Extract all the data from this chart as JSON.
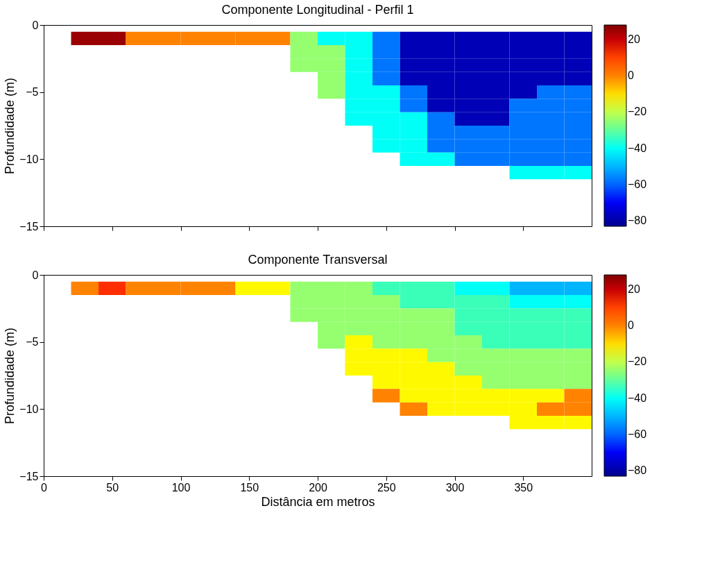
{
  "chart_data": [
    {
      "type": "heatmap",
      "title": "Componente Longitudinal  - Perfil 1",
      "ylabel": "Profundidade (m)",
      "x": [
        30,
        50,
        70,
        90,
        110,
        130,
        150,
        170,
        190,
        210,
        230,
        250,
        270,
        290,
        310,
        330,
        350,
        370,
        390
      ],
      "y": [
        -1,
        -2,
        -3,
        -4,
        -5,
        -6,
        -7,
        -8,
        -9,
        -10,
        -11
      ],
      "cells": [
        [
          25,
          25,
          0,
          0,
          0,
          0,
          0,
          0,
          -25,
          -40,
          -40,
          -57,
          -78,
          -78,
          -78,
          -78,
          -78,
          -78,
          -78
        ],
        [
          null,
          null,
          null,
          null,
          null,
          null,
          null,
          null,
          -25,
          -25,
          -40,
          -57,
          -78,
          -78,
          -78,
          -78,
          -78,
          -78,
          -78
        ],
        [
          null,
          null,
          null,
          null,
          null,
          null,
          null,
          null,
          -25,
          -25,
          -40,
          -57,
          -78,
          -78,
          -78,
          -78,
          -78,
          -78,
          -78
        ],
        [
          null,
          null,
          null,
          null,
          null,
          null,
          null,
          null,
          null,
          -25,
          -40,
          -57,
          -78,
          -78,
          -78,
          -78,
          -78,
          -78,
          -78
        ],
        [
          null,
          null,
          null,
          null,
          null,
          null,
          null,
          null,
          null,
          -25,
          -40,
          -40,
          -57,
          -78,
          -78,
          -78,
          -78,
          -57,
          -57
        ],
        [
          null,
          null,
          null,
          null,
          null,
          null,
          null,
          null,
          null,
          null,
          -40,
          -40,
          -57,
          -78,
          -78,
          -78,
          -57,
          -57,
          -57
        ],
        [
          null,
          null,
          null,
          null,
          null,
          null,
          null,
          null,
          null,
          null,
          -40,
          -40,
          -40,
          -57,
          -78,
          -78,
          -57,
          -57,
          -57
        ],
        [
          null,
          null,
          null,
          null,
          null,
          null,
          null,
          null,
          null,
          null,
          null,
          -40,
          -40,
          -57,
          -57,
          -57,
          -57,
          -57,
          -57
        ],
        [
          null,
          null,
          null,
          null,
          null,
          null,
          null,
          null,
          null,
          null,
          null,
          -40,
          -40,
          -57,
          -57,
          -57,
          -57,
          -57,
          -57
        ],
        [
          null,
          null,
          null,
          null,
          null,
          null,
          null,
          null,
          null,
          null,
          null,
          null,
          -40,
          -40,
          -57,
          -57,
          -57,
          -57,
          -57
        ],
        [
          null,
          null,
          null,
          null,
          null,
          null,
          null,
          null,
          null,
          null,
          null,
          null,
          null,
          null,
          null,
          null,
          -40,
          -40,
          -40
        ]
      ],
      "xlim": [
        0,
        400
      ],
      "ylim": [
        -15,
        0
      ],
      "xticks": [
        0,
        50,
        100,
        150,
        200,
        250,
        300,
        350
      ],
      "yticks": [
        -15,
        -10,
        -5,
        0
      ],
      "clim": [
        -83,
        28
      ],
      "cticks": [
        -80,
        -60,
        -40,
        -20,
        0,
        20
      ],
      "tick_labels": "y",
      "grid": false
    },
    {
      "type": "heatmap",
      "title": "Componente Transversal",
      "xlabel": "Distância em metros",
      "ylabel": "Profundidade (m)",
      "x": [
        30,
        50,
        70,
        90,
        110,
        130,
        150,
        170,
        190,
        210,
        230,
        250,
        270,
        290,
        310,
        330,
        350,
        370,
        390
      ],
      "y": [
        -1,
        -2,
        -3,
        -4,
        -5,
        -6,
        -7,
        -8,
        -9,
        -10,
        -11
      ],
      "cells": [
        [
          0,
          12,
          0,
          0,
          0,
          0,
          -13,
          -13,
          -25,
          -25,
          -25,
          -33,
          -33,
          -33,
          -40,
          -40,
          -50,
          -50,
          -50
        ],
        [
          null,
          null,
          null,
          null,
          null,
          null,
          null,
          null,
          -25,
          -25,
          -25,
          -25,
          -33,
          -33,
          -33,
          -33,
          -40,
          -40,
          -40
        ],
        [
          null,
          null,
          null,
          null,
          null,
          null,
          null,
          null,
          -25,
          -25,
          -25,
          -25,
          -25,
          -25,
          -33,
          -33,
          -33,
          -33,
          -33
        ],
        [
          null,
          null,
          null,
          null,
          null,
          null,
          null,
          null,
          null,
          -25,
          -25,
          -25,
          -25,
          -25,
          -33,
          -33,
          -33,
          -33,
          -33
        ],
        [
          null,
          null,
          null,
          null,
          null,
          null,
          null,
          null,
          null,
          -25,
          -13,
          -25,
          -25,
          -25,
          -25,
          -33,
          -33,
          -33,
          -33
        ],
        [
          null,
          null,
          null,
          null,
          null,
          null,
          null,
          null,
          null,
          null,
          -13,
          -13,
          -13,
          -25,
          -25,
          -25,
          -25,
          -25,
          -25
        ],
        [
          null,
          null,
          null,
          null,
          null,
          null,
          null,
          null,
          null,
          null,
          -13,
          -13,
          -13,
          -13,
          -25,
          -25,
          -25,
          -25,
          -25
        ],
        [
          null,
          null,
          null,
          null,
          null,
          null,
          null,
          null,
          null,
          null,
          null,
          -13,
          -13,
          -13,
          -13,
          -25,
          -25,
          -25,
          -25
        ],
        [
          null,
          null,
          null,
          null,
          null,
          null,
          null,
          null,
          null,
          null,
          null,
          0,
          -13,
          -13,
          -13,
          -13,
          -13,
          -13,
          0
        ],
        [
          null,
          null,
          null,
          null,
          null,
          null,
          null,
          null,
          null,
          null,
          null,
          null,
          0,
          -13,
          -13,
          -13,
          -13,
          0,
          0
        ],
        [
          null,
          null,
          null,
          null,
          null,
          null,
          null,
          null,
          null,
          null,
          null,
          null,
          null,
          null,
          null,
          null,
          -13,
          -13,
          -13
        ]
      ],
      "xlim": [
        0,
        400
      ],
      "ylim": [
        -15,
        0
      ],
      "xticks": [
        0,
        50,
        100,
        150,
        200,
        250,
        300,
        350
      ],
      "yticks": [
        -15,
        -10,
        -5,
        0
      ],
      "clim": [
        -83,
        28
      ],
      "cticks": [
        -80,
        -60,
        -40,
        -20,
        0,
        20
      ],
      "grid": false
    }
  ]
}
